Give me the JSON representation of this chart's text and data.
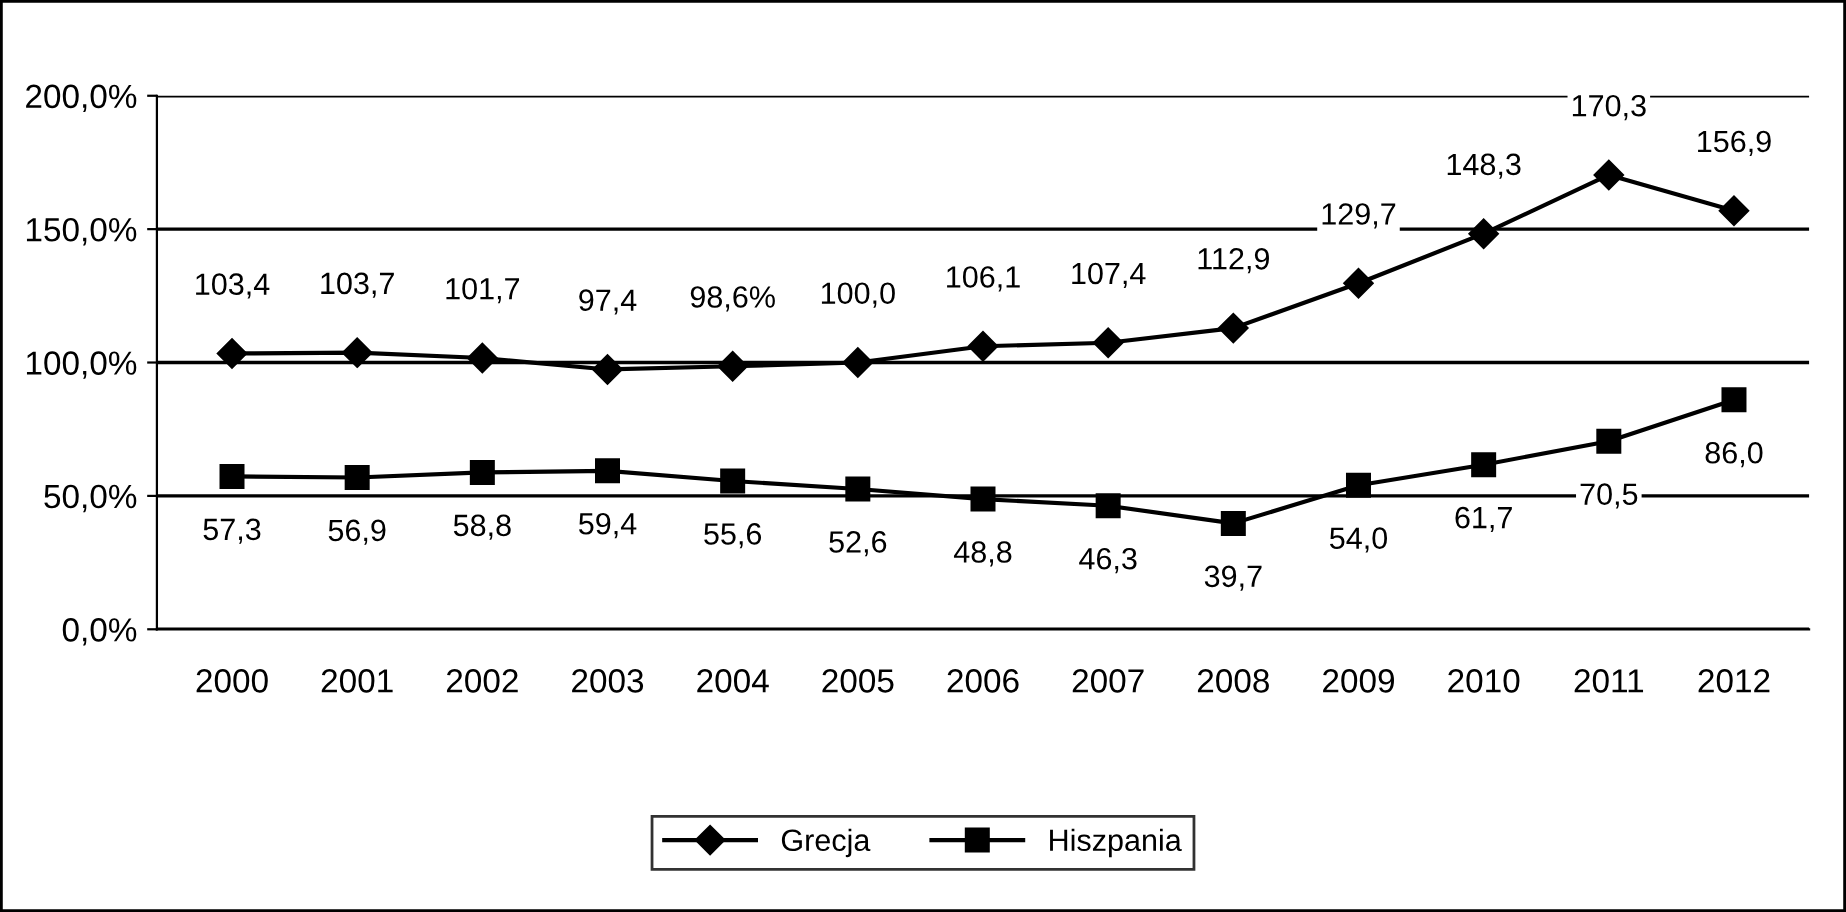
{
  "chart_data": {
    "type": "line",
    "categories": [
      "2000",
      "2001",
      "2002",
      "2003",
      "2004",
      "2005",
      "2006",
      "2007",
      "2008",
      "2009",
      "2010",
      "2011",
      "2012"
    ],
    "series": [
      {
        "name": "Grecja",
        "color": "#000000",
        "marker": "diamond",
        "values": [
          103.4,
          103.7,
          101.7,
          97.4,
          98.6,
          100.0,
          106.1,
          107.4,
          112.9,
          129.7,
          148.3,
          170.3,
          156.9
        ],
        "value_labels": [
          "103,4",
          "103,7",
          "101,7",
          "97,4",
          "98,6%",
          "100,0",
          "106,1",
          "107,4",
          "112,9",
          "129,7",
          "148,3",
          "170,3",
          "156,9"
        ]
      },
      {
        "name": "Hiszpania",
        "color": "#000000",
        "marker": "square",
        "values": [
          57.3,
          56.9,
          58.8,
          59.4,
          55.6,
          52.6,
          48.8,
          46.3,
          39.7,
          54.0,
          61.7,
          70.5,
          86.0
        ],
        "value_labels": [
          "57,3",
          "56,9",
          "58,8",
          "59,4",
          "55,6",
          "52,6",
          "48,8",
          "46,3",
          "39,7",
          "54,0",
          "61,7",
          "70,5",
          "86,0"
        ]
      }
    ],
    "ylim": [
      0,
      200
    ],
    "yticks": [
      {
        "value": 0,
        "label": "0,0%"
      },
      {
        "value": 50,
        "label": "50,0%"
      },
      {
        "value": 100,
        "label": "100,0%"
      },
      {
        "value": 150,
        "label": "150,0%"
      },
      {
        "value": 200,
        "label": "200,0%"
      }
    ],
    "grid": "y",
    "legend": "bottom",
    "line_style": "solid"
  }
}
